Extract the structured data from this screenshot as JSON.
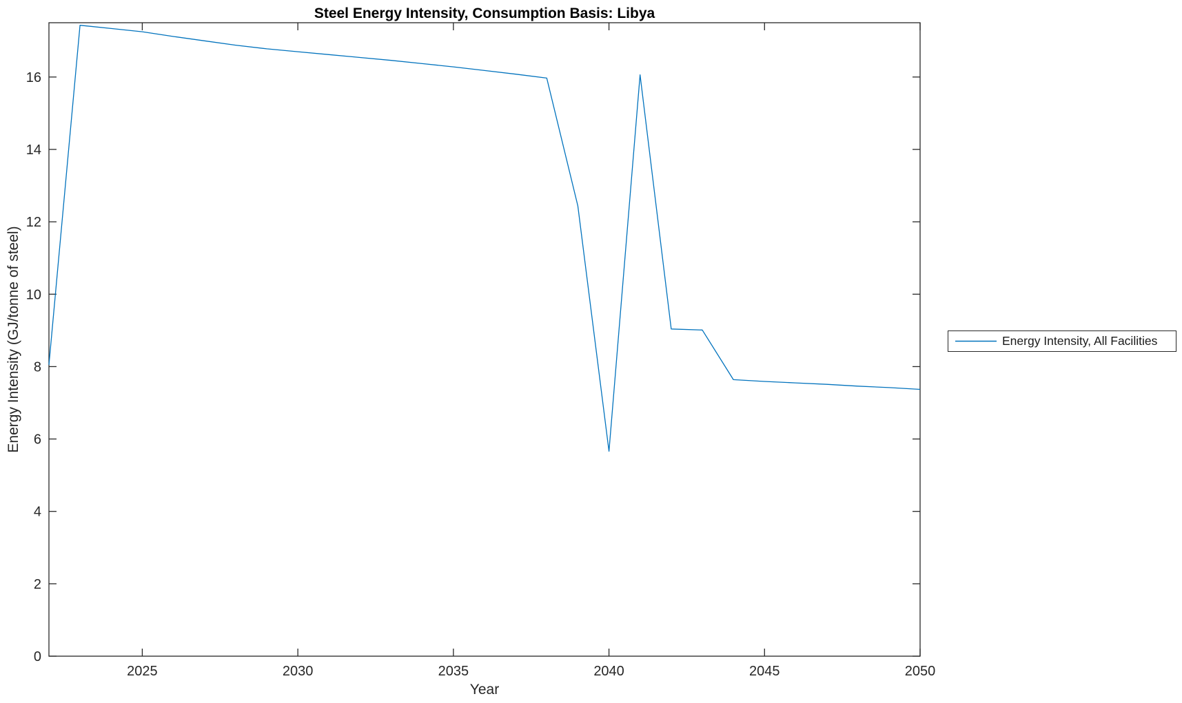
{
  "figure": {
    "background": "#ffffff",
    "axis_color": "#262626",
    "title_color": "#000000",
    "tick_label_color": "#262626"
  },
  "legend": {
    "label": "Energy Intensity, All Facilities",
    "border_color": "#262626"
  },
  "chart_data": {
    "type": "line",
    "title": "Steel Energy Intensity, Consumption Basis: Libya",
    "xlabel": "Year",
    "ylabel": "Energy Intensity (GJ/tonne of steel)",
    "xlim": [
      2022,
      2050
    ],
    "ylim": [
      0,
      17.5
    ],
    "x_ticks": [
      2025,
      2030,
      2035,
      2040,
      2045,
      2050
    ],
    "y_ticks": [
      0,
      2,
      4,
      6,
      8,
      10,
      12,
      14,
      16
    ],
    "grid": false,
    "legend_position": "right-outside",
    "series": [
      {
        "name": "Energy Intensity, All Facilities",
        "color": "#0072BD",
        "x": [
          2022,
          2023,
          2024,
          2025,
          2026,
          2027,
          2028,
          2029,
          2030,
          2031,
          2032,
          2033,
          2034,
          2035,
          2036,
          2037,
          2038,
          2039,
          2040,
          2041,
          2042,
          2043,
          2044,
          2045,
          2046,
          2047,
          2048,
          2049,
          2050
        ],
        "y": [
          8.05,
          17.43,
          17.34,
          17.25,
          17.12,
          17.0,
          16.88,
          16.78,
          16.7,
          16.62,
          16.54,
          16.46,
          16.37,
          16.28,
          16.18,
          16.08,
          15.97,
          12.44,
          5.66,
          16.06,
          9.04,
          9.01,
          7.64,
          7.59,
          7.55,
          7.51,
          7.46,
          7.42,
          7.37
        ]
      }
    ]
  }
}
